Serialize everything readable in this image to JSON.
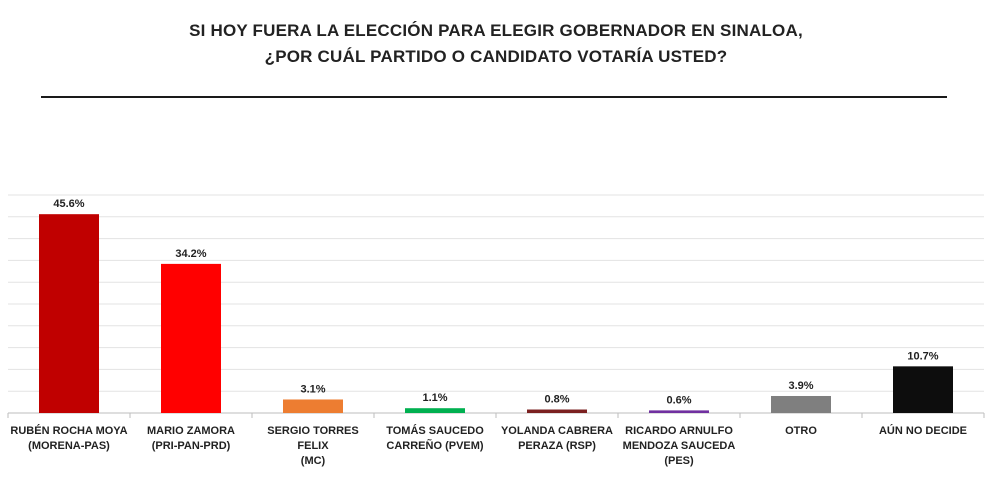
{
  "title": {
    "line1": "SI HOY FUERA LA ELECCIÓN PARA ELEGIR GOBERNADOR EN SINALOA,",
    "line2": "¿POR CUÁL PARTIDO O CANDIDATO VOTARÍA USTED?"
  },
  "chart_data": {
    "type": "bar",
    "title": "SI HOY FUERA LA ELECCIÓN PARA ELEGIR GOBERNADOR EN SINALOA, ¿POR CUÁL PARTIDO O CANDIDATO VOTARÍA USTED?",
    "xlabel": "",
    "ylabel": "",
    "ylim": [
      0,
      50
    ],
    "grid": true,
    "categories": [
      [
        "RUBÉN ROCHA MOYA",
        "(MORENA-PAS)"
      ],
      [
        "MARIO ZAMORA",
        "(PRI-PAN-PRD)"
      ],
      [
        "SERGIO TORRES FELIX",
        "(MC)"
      ],
      [
        "TOMÁS SAUCEDO",
        "CARREÑO (PVEM)"
      ],
      [
        "YOLANDA CABRERA",
        "PERAZA (RSP)"
      ],
      [
        "RICARDO ARNULFO",
        "MENDOZA SAUCEDA",
        "(PES)"
      ],
      [
        "OTRO"
      ],
      [
        "AÚN NO DECIDE"
      ]
    ],
    "values": [
      45.6,
      34.2,
      3.1,
      1.1,
      0.8,
      0.6,
      3.9,
      10.7
    ],
    "value_labels": [
      "45.6%",
      "34.2%",
      "3.1%",
      "1.1%",
      "0.8%",
      "0.6%",
      "3.9%",
      "10.7%"
    ],
    "colors": [
      "#c00000",
      "#ff0000",
      "#ed7d31",
      "#00b050",
      "#7b2020",
      "#7030a0",
      "#7f7f7f",
      "#0d0d0d"
    ]
  }
}
